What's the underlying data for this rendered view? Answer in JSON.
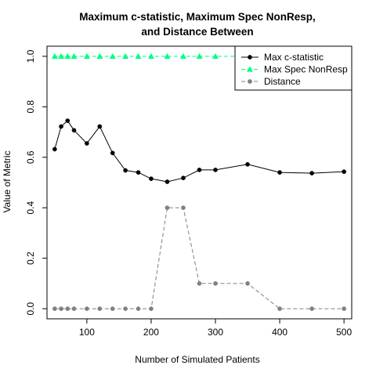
{
  "chart_data": {
    "type": "line",
    "title_lines": [
      "Maximum c-statistic, Maximum Spec NonResp,",
      "and Distance Between"
    ],
    "xlabel": "Number of Simulated Patients",
    "ylabel": "Value of Metric",
    "xlim": [
      38,
      512
    ],
    "ylim": [
      -0.04,
      1.04
    ],
    "xticks": [
      100,
      200,
      300,
      400,
      500
    ],
    "xtick_labels": [
      "100",
      "200",
      "300",
      "400",
      "500"
    ],
    "yticks": [
      0.0,
      0.2,
      0.4,
      0.6,
      0.8,
      1.0
    ],
    "ytick_labels": [
      "0.0",
      "0.2",
      "0.4",
      "0.6",
      "0.8",
      "1.0"
    ],
    "grid": false,
    "legend_position": "top-right",
    "x": [
      50,
      60,
      70,
      80,
      100,
      120,
      140,
      160,
      180,
      200,
      225,
      250,
      275,
      300,
      350,
      400,
      450,
      500
    ],
    "series": [
      {
        "name": "Max c-statistic",
        "color": "#000000",
        "marker": "circle",
        "line_style": "solid",
        "values": [
          0.632,
          0.722,
          0.745,
          0.707,
          0.655,
          0.722,
          0.617,
          0.548,
          0.54,
          0.515,
          0.503,
          0.518,
          0.55,
          0.55,
          0.572,
          0.54,
          0.537,
          0.543
        ]
      },
      {
        "name": "Max Spec NonResp",
        "color": "#00FF7F",
        "marker": "triangle",
        "line_style": "dashed",
        "values": [
          1.0,
          1.0,
          1.0,
          1.0,
          1.0,
          1.0,
          1.0,
          1.0,
          1.0,
          1.0,
          1.0,
          1.0,
          1.0,
          1.0,
          1.0,
          1.0,
          1.0,
          1.0
        ]
      },
      {
        "name": "Distance",
        "color": "#808080",
        "marker": "circle",
        "line_style": "dashed",
        "values": [
          0.0,
          0.0,
          0.0,
          0.0,
          0.0,
          0.0,
          0.0,
          0.0,
          0.0,
          0.0,
          0.4,
          0.4,
          0.1,
          0.1,
          0.1,
          0.0,
          0.0,
          0.0
        ]
      }
    ]
  }
}
